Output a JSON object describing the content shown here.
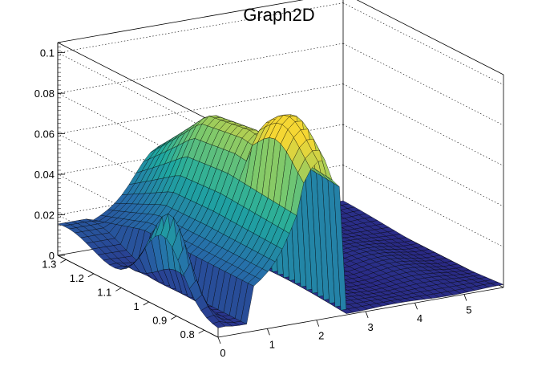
{
  "chart_data": {
    "type": "surface",
    "title": "Graph2D",
    "xlabel": "",
    "ylabel": "",
    "zlabel": "",
    "x_ticks": [
      "0",
      "1",
      "2",
      "3",
      "4",
      "5"
    ],
    "y_ticks": [
      "0.8",
      "0.9",
      "1",
      "1.1",
      "1.2",
      "1.3"
    ],
    "z_ticks": [
      "0",
      "0.02",
      "0.04",
      "0.06",
      "0.08",
      "0.1"
    ],
    "xlim": [
      0,
      5.8
    ],
    "ylim": [
      0.75,
      1.33
    ],
    "zlim": [
      0,
      0.105
    ],
    "grid": true,
    "colormap": "viridis-like",
    "colors": {
      "low": "#2a2a86",
      "mid": "#1f9aa3",
      "high": "#f5d733",
      "mesh_line": "#000000",
      "frame_line": "#000000"
    }
  }
}
